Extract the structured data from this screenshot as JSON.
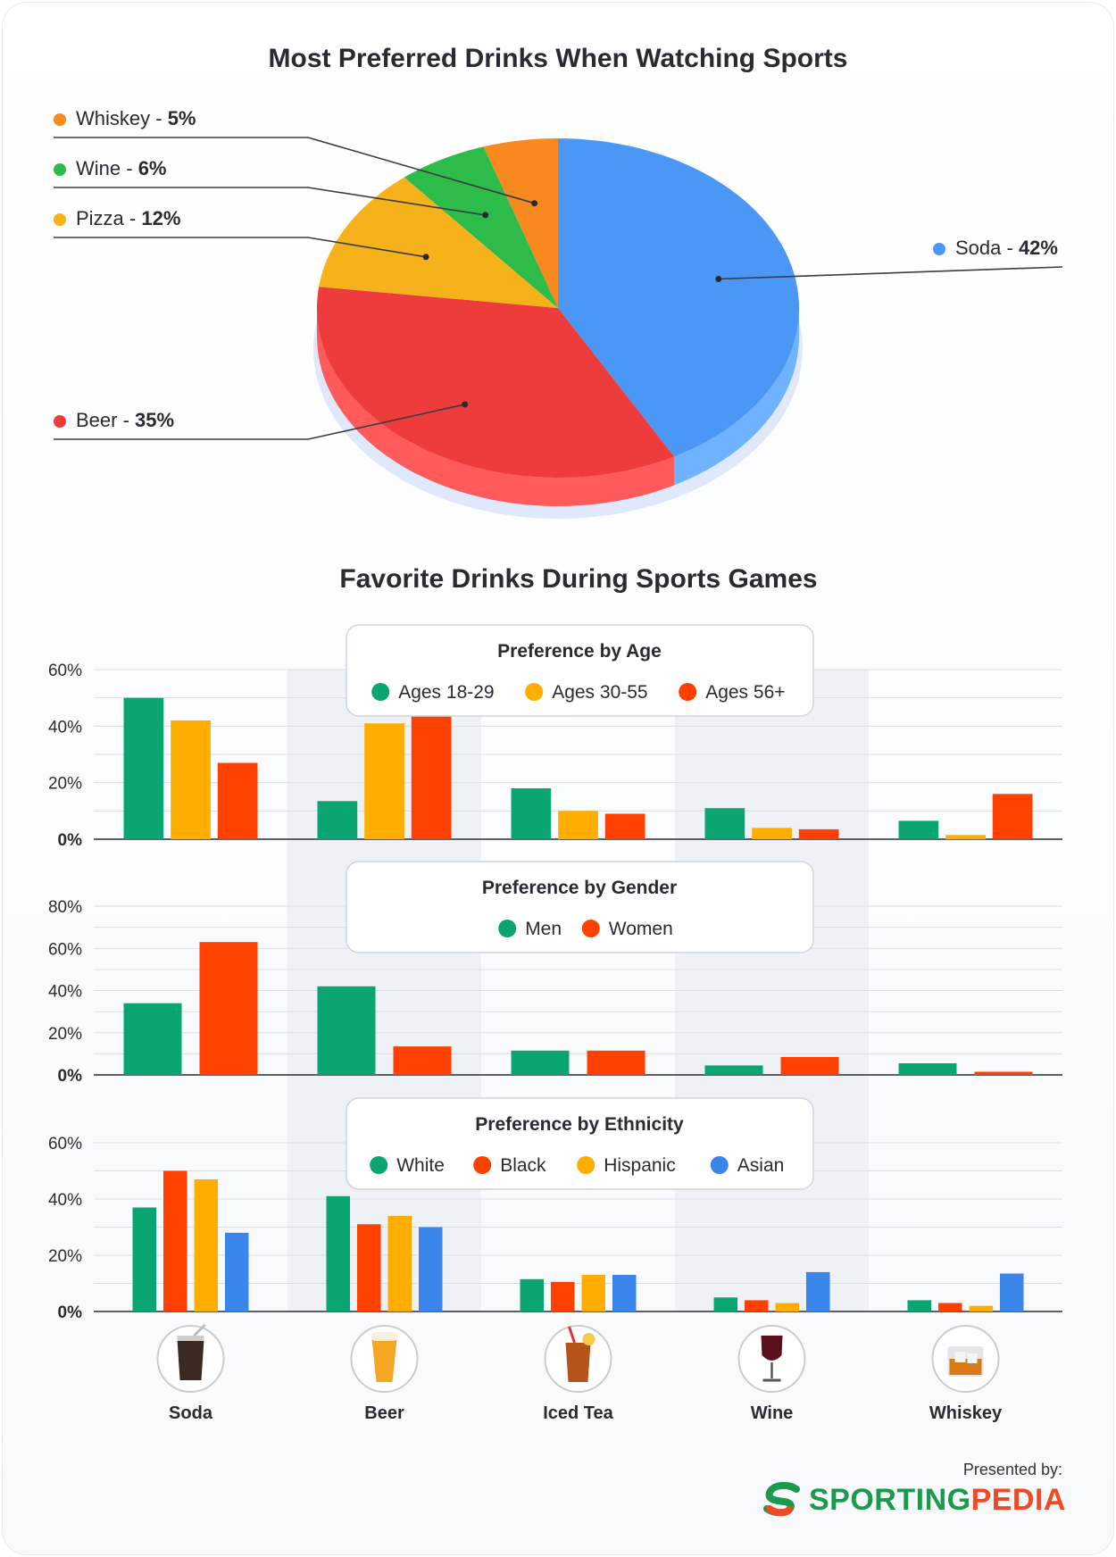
{
  "colors": {
    "soda": "#4a97f5",
    "beer": "#ee3c3c",
    "pizza": "#f5b21b",
    "wine": "#2dbb4a",
    "whiskey": "#f7891f",
    "green": "#0aa571",
    "orange": "#ffae00",
    "red": "#ff4000",
    "blue": "#3a85e9"
  },
  "chart_data": [
    {
      "type": "pie",
      "title": "Most Preferred Drinks When Watching Sports",
      "slices": [
        {
          "label": "Soda",
          "value": 42,
          "value_label": "42%",
          "color": "#4a97f5",
          "side_color": "#6fb3ff"
        },
        {
          "label": "Beer",
          "value": 35,
          "value_label": "35%",
          "color": "#ee3c3c",
          "side_color": "#ff5b5b"
        },
        {
          "label": "Pizza",
          "value": 12,
          "value_label": "12%",
          "color": "#f5b21b",
          "side_color": "#f5b21b"
        },
        {
          "label": "Wine",
          "value": 6,
          "value_label": "6%",
          "color": "#2dbb4a",
          "side_color": "#2dbb4a"
        },
        {
          "label": "Whiskey",
          "value": 5,
          "value_label": "5%",
          "color": "#f7891f",
          "side_color": "#f7891f"
        }
      ]
    },
    {
      "type": "bar",
      "title": "Favorite Drinks During Sports Games",
      "legend_title": "Preference by Age",
      "categories": [
        "Soda",
        "Beer",
        "Iced Tea",
        "Wine",
        "Whiskey"
      ],
      "ylim": [
        0,
        60
      ],
      "yticks": [
        "0%",
        "20%",
        "40%",
        "60%"
      ],
      "series": [
        {
          "name": "Ages 18-29",
          "color": "#0aa571",
          "values": [
            50,
            13.5,
            18,
            11,
            6.5
          ]
        },
        {
          "name": "Ages 30-55",
          "color": "#ffae00",
          "values": [
            42,
            41,
            10,
            4,
            1.5
          ]
        },
        {
          "name": "Ages 56+",
          "color": "#ff4000",
          "values": [
            27,
            44,
            9,
            3.5,
            16
          ]
        }
      ]
    },
    {
      "type": "bar",
      "legend_title": "Preference by Gender",
      "categories": [
        "Soda",
        "Beer",
        "Iced Tea",
        "Wine",
        "Whiskey"
      ],
      "ylim": [
        0,
        80
      ],
      "yticks": [
        "0%",
        "20%",
        "40%",
        "60%",
        "80%"
      ],
      "series": [
        {
          "name": "Men",
          "color": "#0aa571",
          "values": [
            34,
            42,
            11.5,
            4.5,
            5.5
          ]
        },
        {
          "name": "Women",
          "color": "#ff4000",
          "values": [
            63,
            13.5,
            11.5,
            8.5,
            1.5
          ]
        }
      ]
    },
    {
      "type": "bar",
      "legend_title": "Preference by Ethnicity",
      "categories": [
        "Soda",
        "Beer",
        "Iced Tea",
        "Wine",
        "Whiskey"
      ],
      "ylim": [
        0,
        60
      ],
      "yticks": [
        "0%",
        "20%",
        "40%",
        "60%"
      ],
      "series": [
        {
          "name": "White",
          "color": "#0aa571",
          "values": [
            37,
            41,
            11.5,
            5,
            4
          ]
        },
        {
          "name": "Black",
          "color": "#ff4000",
          "values": [
            50,
            31,
            10.5,
            4,
            3
          ]
        },
        {
          "name": "Hispanic",
          "color": "#ffae00",
          "values": [
            47,
            34,
            13,
            3,
            2
          ]
        },
        {
          "name": "Asian",
          "color": "#3a85e9",
          "values": [
            28,
            30,
            13,
            14,
            13.5
          ]
        }
      ]
    }
  ],
  "drink_icons": [
    {
      "label": "Soda",
      "icon": "soda-glass-icon"
    },
    {
      "label": "Beer",
      "icon": "beer-glass-icon"
    },
    {
      "label": "Iced Tea",
      "icon": "iced-tea-glass-icon"
    },
    {
      "label": "Wine",
      "icon": "wine-glass-icon"
    },
    {
      "label": "Whiskey",
      "icon": "whiskey-glass-icon"
    }
  ],
  "footer": {
    "presented_by": "Presented by:",
    "brand_part1": "SPORTING",
    "brand_part2": "PEDIA"
  }
}
